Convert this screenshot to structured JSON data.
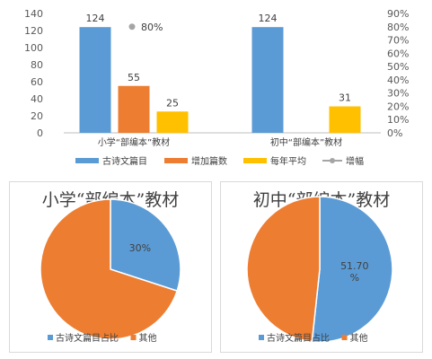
{
  "chart_data": [
    {
      "type": "bar",
      "categories": [
        "小学“部编本”教材",
        "初中“部编本”教材"
      ],
      "series": [
        {
          "name": "古诗文篇目",
          "color": "#5b9bd5",
          "values": [
            124,
            124
          ]
        },
        {
          "name": "增加篇数",
          "color": "#ed7d31",
          "values": [
            55,
            null
          ]
        },
        {
          "name": "每年平均",
          "color": "#ffc000",
          "values": [
            25,
            31
          ]
        },
        {
          "name": "增幅",
          "color": "#a5a5a5",
          "type": "line",
          "axis": "secondary",
          "values": [
            0.8,
            null
          ]
        }
      ],
      "data_labels": [
        "124",
        "55",
        "25",
        "124",
        "31"
      ],
      "growth_label": "80%",
      "y_ticks": [
        "140",
        "120",
        "100",
        "80",
        "60",
        "40",
        "20",
        "0"
      ],
      "y2_ticks": [
        "90%",
        "80%",
        "70%",
        "60%",
        "50%",
        "40%",
        "30%",
        "20%",
        "10%",
        "0%"
      ],
      "ylim": [
        0,
        140
      ],
      "y2lim": [
        0,
        0.9
      ],
      "legend": [
        "古诗文篇目",
        "增加篇数",
        "每年平均",
        "增幅"
      ],
      "legend_position": "bottom"
    },
    {
      "type": "pie",
      "title": "小学“部编本”教材",
      "labels": [
        "古诗文篇目占比",
        "其他"
      ],
      "values": [
        30,
        70
      ],
      "colors": [
        "#5b9bd5",
        "#ed7d31"
      ],
      "value_label": "30%",
      "legend_position": "bottom"
    },
    {
      "type": "pie",
      "title": "初中“部编本”教材",
      "labels": [
        "古诗文篇目占比",
        "其他"
      ],
      "values": [
        51.7,
        48.3
      ],
      "colors": [
        "#5b9bd5",
        "#ed7d31"
      ],
      "value_label_lines": [
        "51.70",
        "%"
      ],
      "legend_position": "bottom"
    }
  ]
}
